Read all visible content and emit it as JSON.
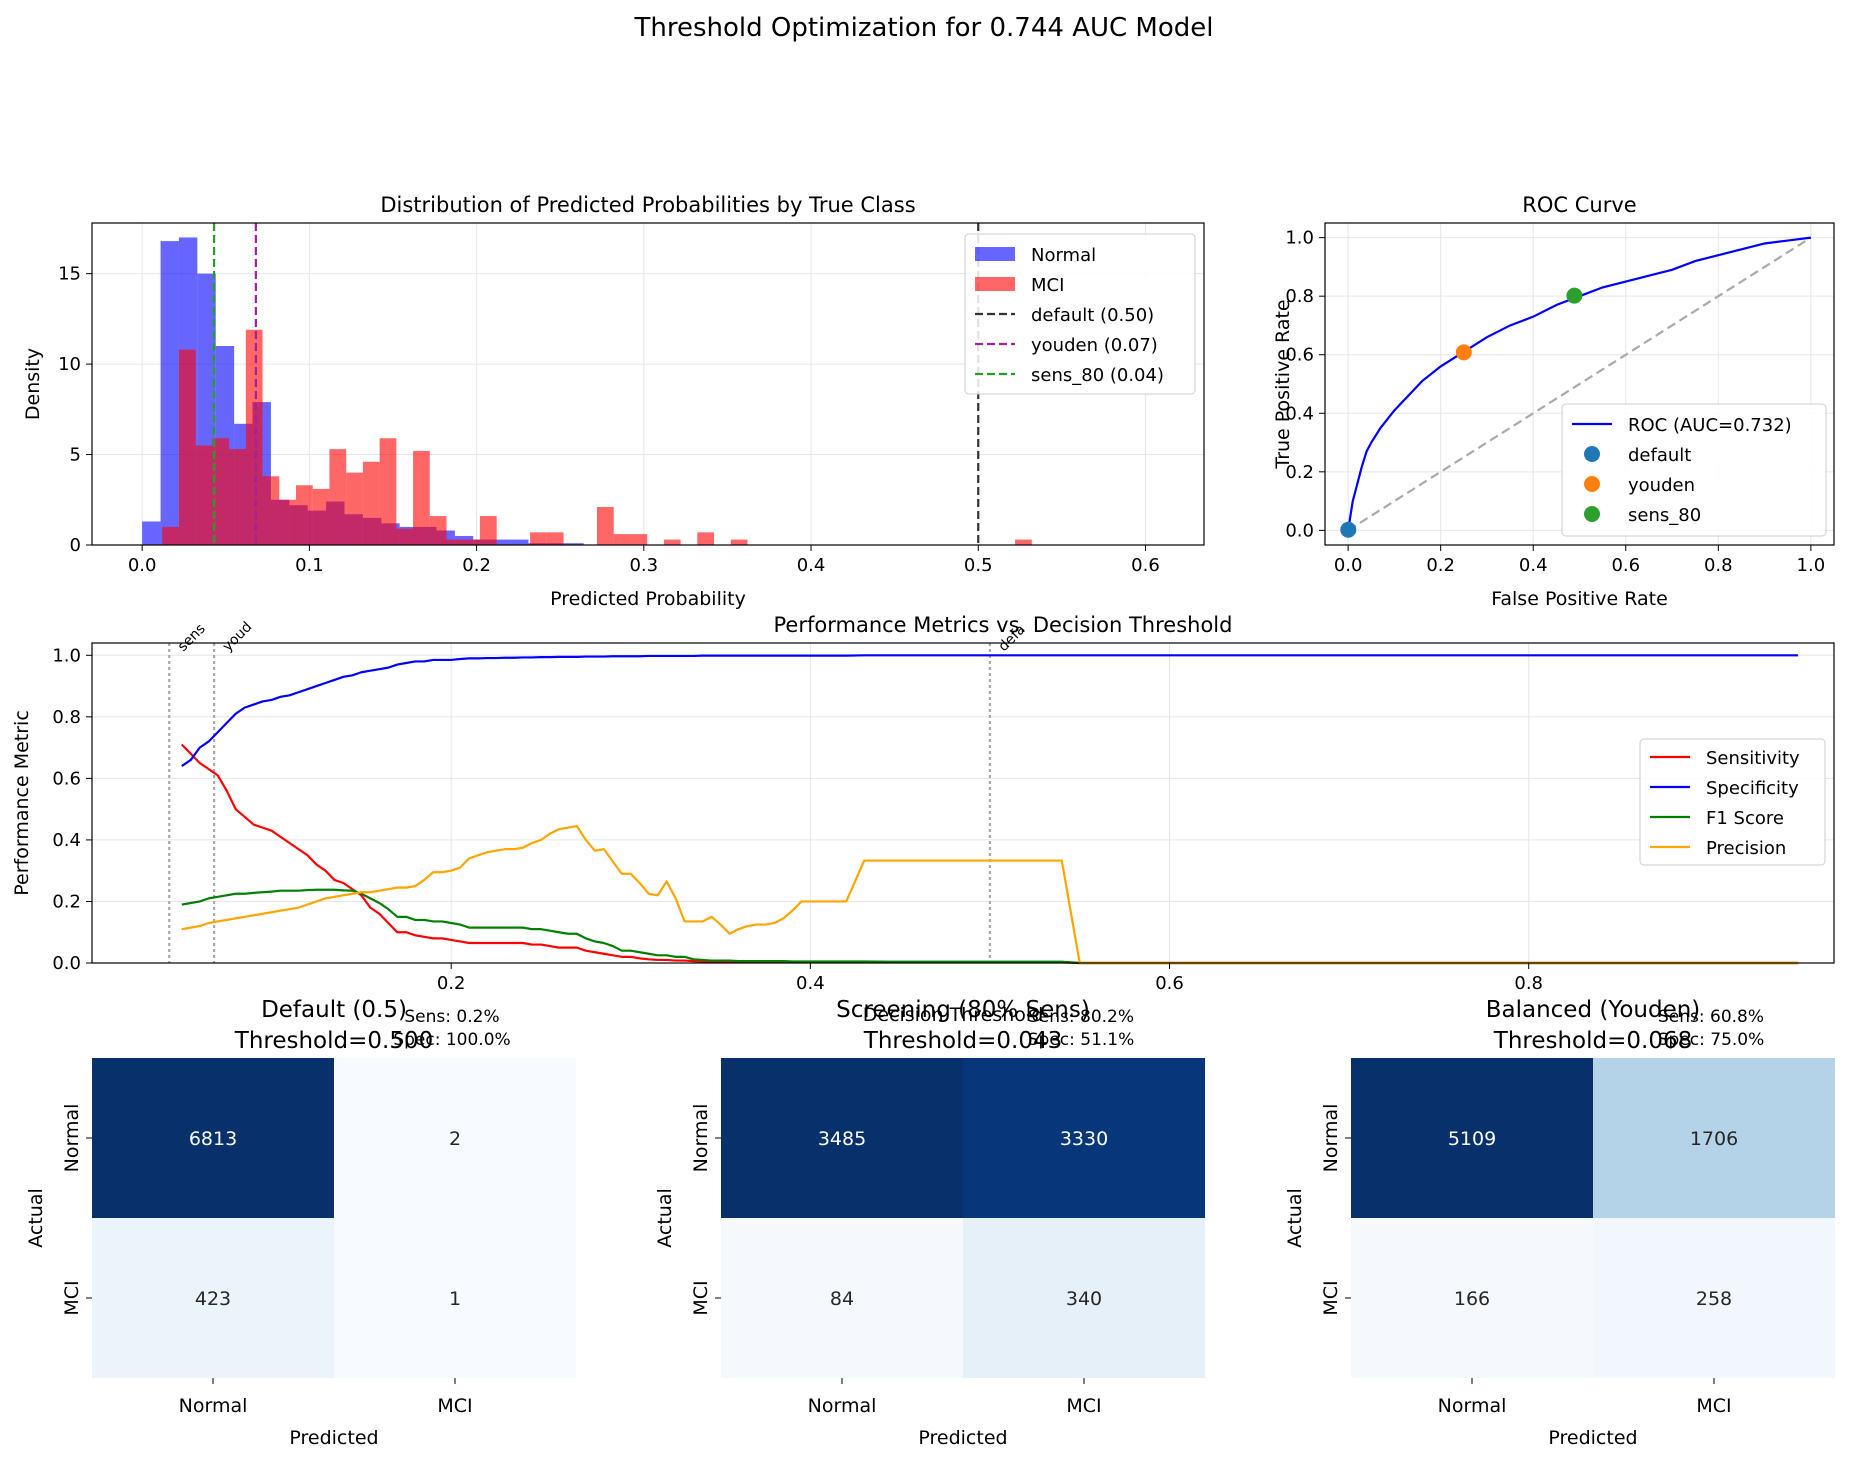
{
  "suptitle": "Threshold Optimization for 0.744 AUC Model",
  "chart_data": [
    {
      "type": "bar",
      "title": "Distribution of Predicted Probabilities by True Class",
      "xlabel": "Predicted Probability",
      "ylabel": "Density",
      "xlim": [
        -0.03,
        0.635
      ],
      "ylim": [
        0,
        17.8
      ],
      "xticks": [
        0.0,
        0.1,
        0.2,
        0.3,
        0.4,
        0.5,
        0.6
      ],
      "xtick_labels": [
        "0.0",
        "0.1",
        "0.2",
        "0.3",
        "0.4",
        "0.5",
        "0.6"
      ],
      "yticks": [
        0,
        5,
        10,
        15
      ],
      "ytick_labels": [
        "0",
        "5",
        "10",
        "15"
      ],
      "grid": true,
      "legend_position": "top-right",
      "series": [
        {
          "name": "Normal",
          "color": "#0000ff",
          "bins": [
            [
              0.0,
              0.011,
              1.3
            ],
            [
              0.011,
              0.022,
              16.8
            ],
            [
              0.022,
              0.033,
              17.0
            ],
            [
              0.033,
              0.044,
              15.0
            ],
            [
              0.044,
              0.055,
              11.0
            ],
            [
              0.055,
              0.066,
              6.7
            ],
            [
              0.066,
              0.077,
              7.9
            ],
            [
              0.077,
              0.088,
              2.5
            ],
            [
              0.088,
              0.099,
              2.2
            ],
            [
              0.099,
              0.11,
              1.9
            ],
            [
              0.11,
              0.121,
              2.4
            ],
            [
              0.121,
              0.132,
              1.7
            ],
            [
              0.132,
              0.143,
              1.5
            ],
            [
              0.143,
              0.154,
              1.2
            ],
            [
              0.154,
              0.165,
              1.0
            ],
            [
              0.165,
              0.176,
              1.0
            ],
            [
              0.176,
              0.187,
              0.8
            ],
            [
              0.187,
              0.198,
              0.5
            ],
            [
              0.198,
              0.209,
              0.3
            ],
            [
              0.209,
              0.22,
              0.3
            ],
            [
              0.22,
              0.231,
              0.3
            ],
            [
              0.231,
              0.242,
              0.1
            ],
            [
              0.242,
              0.253,
              0.1
            ],
            [
              0.253,
              0.264,
              0.1
            ]
          ]
        },
        {
          "name": "MCI",
          "color": "#ff0000",
          "bins": [
            [
              0.012,
              0.022,
              1.0
            ],
            [
              0.022,
              0.032,
              10.8
            ],
            [
              0.032,
              0.042,
              5.5
            ],
            [
              0.042,
              0.052,
              5.9
            ],
            [
              0.052,
              0.062,
              5.3
            ],
            [
              0.062,
              0.072,
              11.9
            ],
            [
              0.072,
              0.082,
              3.8
            ],
            [
              0.082,
              0.092,
              2.5
            ],
            [
              0.092,
              0.102,
              3.3
            ],
            [
              0.102,
              0.112,
              3.1
            ],
            [
              0.112,
              0.122,
              5.3
            ],
            [
              0.122,
              0.132,
              4.0
            ],
            [
              0.132,
              0.142,
              4.6
            ],
            [
              0.142,
              0.152,
              5.9
            ],
            [
              0.152,
              0.162,
              0.9
            ],
            [
              0.162,
              0.172,
              5.2
            ],
            [
              0.172,
              0.182,
              1.6
            ],
            [
              0.182,
              0.192,
              0.3
            ],
            [
              0.192,
              0.202,
              0.3
            ],
            [
              0.202,
              0.212,
              1.6
            ],
            [
              0.232,
              0.242,
              0.7
            ],
            [
              0.242,
              0.252,
              0.7
            ],
            [
              0.272,
              0.282,
              2.1
            ],
            [
              0.282,
              0.292,
              0.6
            ],
            [
              0.292,
              0.302,
              0.6
            ],
            [
              0.312,
              0.322,
              0.3
            ],
            [
              0.332,
              0.342,
              0.7
            ],
            [
              0.352,
              0.362,
              0.3
            ],
            [
              0.522,
              0.532,
              0.3
            ]
          ]
        }
      ],
      "vlines": [
        {
          "name": "default (0.50)",
          "x": 0.5,
          "color": "#333333"
        },
        {
          "name": "youden (0.07)",
          "x": 0.068,
          "color": "#a020a0"
        },
        {
          "name": "sens_80 (0.04)",
          "x": 0.043,
          "color": "#22a022"
        }
      ]
    },
    {
      "type": "line",
      "title": "ROC Curve",
      "xlabel": "False Positive Rate",
      "ylabel": "True Positive Rate",
      "xlim": [
        -0.05,
        1.05
      ],
      "ylim": [
        -0.05,
        1.05
      ],
      "ticks": [
        0.0,
        0.2,
        0.4,
        0.6,
        0.8,
        1.0
      ],
      "tick_labels": [
        "0.0",
        "0.2",
        "0.4",
        "0.6",
        "0.8",
        "1.0"
      ],
      "grid": true,
      "legend_position": "lower-right",
      "roc": {
        "name": "ROC (AUC=0.732)",
        "color": "#0000ff",
        "fpr": [
          0,
          0.005,
          0.01,
          0.02,
          0.03,
          0.04,
          0.05,
          0.07,
          0.1,
          0.13,
          0.16,
          0.2,
          0.25,
          0.3,
          0.35,
          0.4,
          0.45,
          0.5,
          0.55,
          0.6,
          0.65,
          0.7,
          0.75,
          0.8,
          0.85,
          0.9,
          0.95,
          1.0
        ],
        "tpr": [
          0,
          0.05,
          0.1,
          0.16,
          0.22,
          0.27,
          0.3,
          0.35,
          0.41,
          0.46,
          0.51,
          0.56,
          0.61,
          0.66,
          0.7,
          0.73,
          0.77,
          0.8,
          0.83,
          0.85,
          0.87,
          0.89,
          0.92,
          0.94,
          0.96,
          0.98,
          0.99,
          1.0
        ]
      },
      "diagonal_color": "#aaaaaa",
      "points": [
        {
          "name": "default",
          "fpr": 0.0003,
          "tpr": 0.002,
          "color": "#1f77b4"
        },
        {
          "name": "youden",
          "fpr": 0.25,
          "tpr": 0.608,
          "color": "#ff7f0e"
        },
        {
          "name": "sens_80",
          "fpr": 0.489,
          "tpr": 0.802,
          "color": "#2ca02c"
        }
      ]
    },
    {
      "type": "line",
      "title": "Performance Metrics vs. Decision Threshold",
      "xlabel": "Decision Threshold",
      "ylabel": "Performance Metric",
      "xlim": [
        0.0,
        0.97
      ],
      "ylim": [
        0.0,
        1.04
      ],
      "xticks": [
        0.2,
        0.4,
        0.6,
        0.8
      ],
      "xtick_labels": [
        "0.2",
        "0.4",
        "0.6",
        "0.8"
      ],
      "yticks": [
        0.0,
        0.2,
        0.4,
        0.6,
        0.8,
        1.0
      ],
      "ytick_labels": [
        "0.0",
        "0.2",
        "0.4",
        "0.6",
        "0.8",
        "1.0"
      ],
      "grid": true,
      "legend_position": "center-right",
      "threshold_markers": [
        {
          "label": "sens",
          "x": 0.043
        },
        {
          "label": "youd",
          "x": 0.068
        },
        {
          "label": "defa",
          "x": 0.5
        }
      ],
      "x": [
        0.05,
        0.055,
        0.06,
        0.065,
        0.07,
        0.075,
        0.08,
        0.085,
        0.09,
        0.095,
        0.1,
        0.105,
        0.11,
        0.115,
        0.12,
        0.125,
        0.13,
        0.135,
        0.14,
        0.145,
        0.15,
        0.155,
        0.16,
        0.165,
        0.17,
        0.175,
        0.18,
        0.185,
        0.19,
        0.195,
        0.2,
        0.205,
        0.21,
        0.215,
        0.22,
        0.225,
        0.23,
        0.235,
        0.24,
        0.245,
        0.25,
        0.255,
        0.26,
        0.265,
        0.27,
        0.275,
        0.28,
        0.285,
        0.29,
        0.295,
        0.3,
        0.305,
        0.31,
        0.315,
        0.32,
        0.325,
        0.33,
        0.335,
        0.34,
        0.345,
        0.35,
        0.355,
        0.36,
        0.365,
        0.37,
        0.375,
        0.38,
        0.385,
        0.39,
        0.395,
        0.4,
        0.42,
        0.43,
        0.45,
        0.5,
        0.54,
        0.55,
        0.6,
        0.7,
        0.8,
        0.95
      ],
      "series": [
        {
          "name": "Sensitivity",
          "color": "#ff0000",
          "values": [
            0.71,
            0.68,
            0.65,
            0.63,
            0.61,
            0.56,
            0.5,
            0.475,
            0.45,
            0.44,
            0.43,
            0.41,
            0.39,
            0.37,
            0.35,
            0.32,
            0.3,
            0.27,
            0.26,
            0.24,
            0.22,
            0.18,
            0.16,
            0.13,
            0.1,
            0.1,
            0.09,
            0.085,
            0.08,
            0.08,
            0.075,
            0.07,
            0.065,
            0.065,
            0.065,
            0.065,
            0.065,
            0.065,
            0.065,
            0.06,
            0.06,
            0.055,
            0.05,
            0.05,
            0.05,
            0.04,
            0.035,
            0.03,
            0.025,
            0.02,
            0.02,
            0.015,
            0.012,
            0.01,
            0.01,
            0.008,
            0.008,
            0.006,
            0.005,
            0.004,
            0.004,
            0.004,
            0.003,
            0.003,
            0.003,
            0.003,
            0.003,
            0.003,
            0.003,
            0.003,
            0.003,
            0.003,
            0.003,
            0.002,
            0.002,
            0.002,
            0.0,
            0.0,
            0.0,
            0.0,
            0.0
          ]
        },
        {
          "name": "Specificity",
          "color": "#0000ff",
          "values": [
            0.64,
            0.66,
            0.7,
            0.72,
            0.75,
            0.78,
            0.81,
            0.83,
            0.84,
            0.85,
            0.855,
            0.865,
            0.87,
            0.88,
            0.89,
            0.9,
            0.91,
            0.92,
            0.93,
            0.935,
            0.945,
            0.95,
            0.955,
            0.96,
            0.97,
            0.975,
            0.98,
            0.98,
            0.985,
            0.985,
            0.985,
            0.988,
            0.99,
            0.99,
            0.991,
            0.991,
            0.992,
            0.992,
            0.993,
            0.993,
            0.994,
            0.994,
            0.995,
            0.995,
            0.995,
            0.996,
            0.996,
            0.996,
            0.997,
            0.997,
            0.997,
            0.997,
            0.998,
            0.998,
            0.998,
            0.998,
            0.998,
            0.998,
            0.999,
            0.999,
            0.999,
            0.999,
            0.999,
            0.999,
            0.999,
            0.999,
            0.999,
            0.999,
            0.999,
            0.999,
            0.999,
            0.999,
            1.0,
            1.0,
            1.0,
            1.0,
            1.0,
            1.0,
            1.0,
            1.0,
            1.0
          ]
        },
        {
          "name": "F1 Score",
          "color": "#008000",
          "values": [
            0.19,
            0.195,
            0.2,
            0.21,
            0.215,
            0.22,
            0.225,
            0.225,
            0.228,
            0.23,
            0.232,
            0.235,
            0.235,
            0.235,
            0.237,
            0.238,
            0.238,
            0.238,
            0.236,
            0.235,
            0.225,
            0.21,
            0.195,
            0.175,
            0.15,
            0.15,
            0.14,
            0.14,
            0.135,
            0.135,
            0.13,
            0.125,
            0.115,
            0.115,
            0.115,
            0.115,
            0.115,
            0.115,
            0.115,
            0.11,
            0.11,
            0.105,
            0.1,
            0.095,
            0.095,
            0.08,
            0.07,
            0.065,
            0.055,
            0.04,
            0.04,
            0.035,
            0.03,
            0.025,
            0.025,
            0.02,
            0.02,
            0.012,
            0.01,
            0.008,
            0.008,
            0.008,
            0.006,
            0.006,
            0.006,
            0.006,
            0.006,
            0.006,
            0.005,
            0.005,
            0.005,
            0.005,
            0.005,
            0.004,
            0.004,
            0.004,
            0.0,
            0.0,
            0.0,
            0.0,
            0.0
          ]
        },
        {
          "name": "Precision",
          "color": "#ffa500",
          "values": [
            0.11,
            0.115,
            0.12,
            0.13,
            0.135,
            0.14,
            0.145,
            0.15,
            0.155,
            0.16,
            0.165,
            0.17,
            0.175,
            0.18,
            0.19,
            0.2,
            0.21,
            0.215,
            0.22,
            0.225,
            0.23,
            0.23,
            0.235,
            0.24,
            0.245,
            0.245,
            0.25,
            0.27,
            0.295,
            0.295,
            0.3,
            0.31,
            0.34,
            0.35,
            0.36,
            0.365,
            0.37,
            0.37,
            0.375,
            0.39,
            0.4,
            0.42,
            0.435,
            0.44,
            0.445,
            0.4,
            0.365,
            0.37,
            0.33,
            0.29,
            0.29,
            0.26,
            0.225,
            0.22,
            0.265,
            0.21,
            0.135,
            0.135,
            0.135,
            0.15,
            0.125,
            0.095,
            0.11,
            0.12,
            0.125,
            0.125,
            0.13,
            0.145,
            0.17,
            0.2,
            0.2,
            0.2,
            0.333,
            0.333,
            0.333,
            0.333,
            0.0,
            0.0,
            0.0,
            0.0,
            0.0
          ]
        }
      ]
    },
    {
      "type": "heatmap",
      "title": "Default (0.5)",
      "subtitle": "Threshold=0.500",
      "annotation_lines": [
        "Sens: 0.2%",
        "Spec: 100.0%"
      ],
      "xlabel": "Predicted",
      "ylabel": "Actual",
      "rows": [
        "Normal",
        "MCI"
      ],
      "cols": [
        "Normal",
        "MCI"
      ],
      "values": [
        [
          6813,
          2
        ],
        [
          423,
          1
        ]
      ],
      "cell_colors": [
        [
          "#08306b",
          "#f7fbff"
        ],
        [
          "#ebf3fb",
          "#f7fbff"
        ]
      ],
      "text_colors": [
        [
          "#ffffff",
          "#262626"
        ],
        [
          "#262626",
          "#262626"
        ]
      ]
    },
    {
      "type": "heatmap",
      "title": "Screening (80% Sens)",
      "subtitle": "Threshold=0.043",
      "annotation_lines": [
        "Sens: 80.2%",
        "Spec: 51.1%"
      ],
      "xlabel": "Predicted",
      "ylabel": "Actual",
      "rows": [
        "Normal",
        "MCI"
      ],
      "cols": [
        "Normal",
        "MCI"
      ],
      "values": [
        [
          3485,
          3330
        ],
        [
          84,
          340
        ]
      ],
      "cell_colors": [
        [
          "#08306b",
          "#08367a"
        ],
        [
          "#f5f9fe",
          "#e6f0f9"
        ]
      ],
      "text_colors": [
        [
          "#ffffff",
          "#ffffff"
        ],
        [
          "#262626",
          "#262626"
        ]
      ]
    },
    {
      "type": "heatmap",
      "title": "Balanced (Youden)",
      "subtitle": "Threshold=0.068",
      "annotation_lines": [
        "Sens: 60.8%",
        "Spec: 75.0%"
      ],
      "xlabel": "Predicted",
      "ylabel": "Actual",
      "rows": [
        "Normal",
        "MCI"
      ],
      "cols": [
        "Normal",
        "MCI"
      ],
      "values": [
        [
          5109,
          1706
        ],
        [
          166,
          258
        ]
      ],
      "cell_colors": [
        [
          "#08306b",
          "#b4d3e9"
        ],
        [
          "#f5f9fe",
          "#f1f7fd"
        ]
      ],
      "text_colors": [
        [
          "#ffffff",
          "#262626"
        ],
        [
          "#262626",
          "#262626"
        ]
      ]
    }
  ]
}
